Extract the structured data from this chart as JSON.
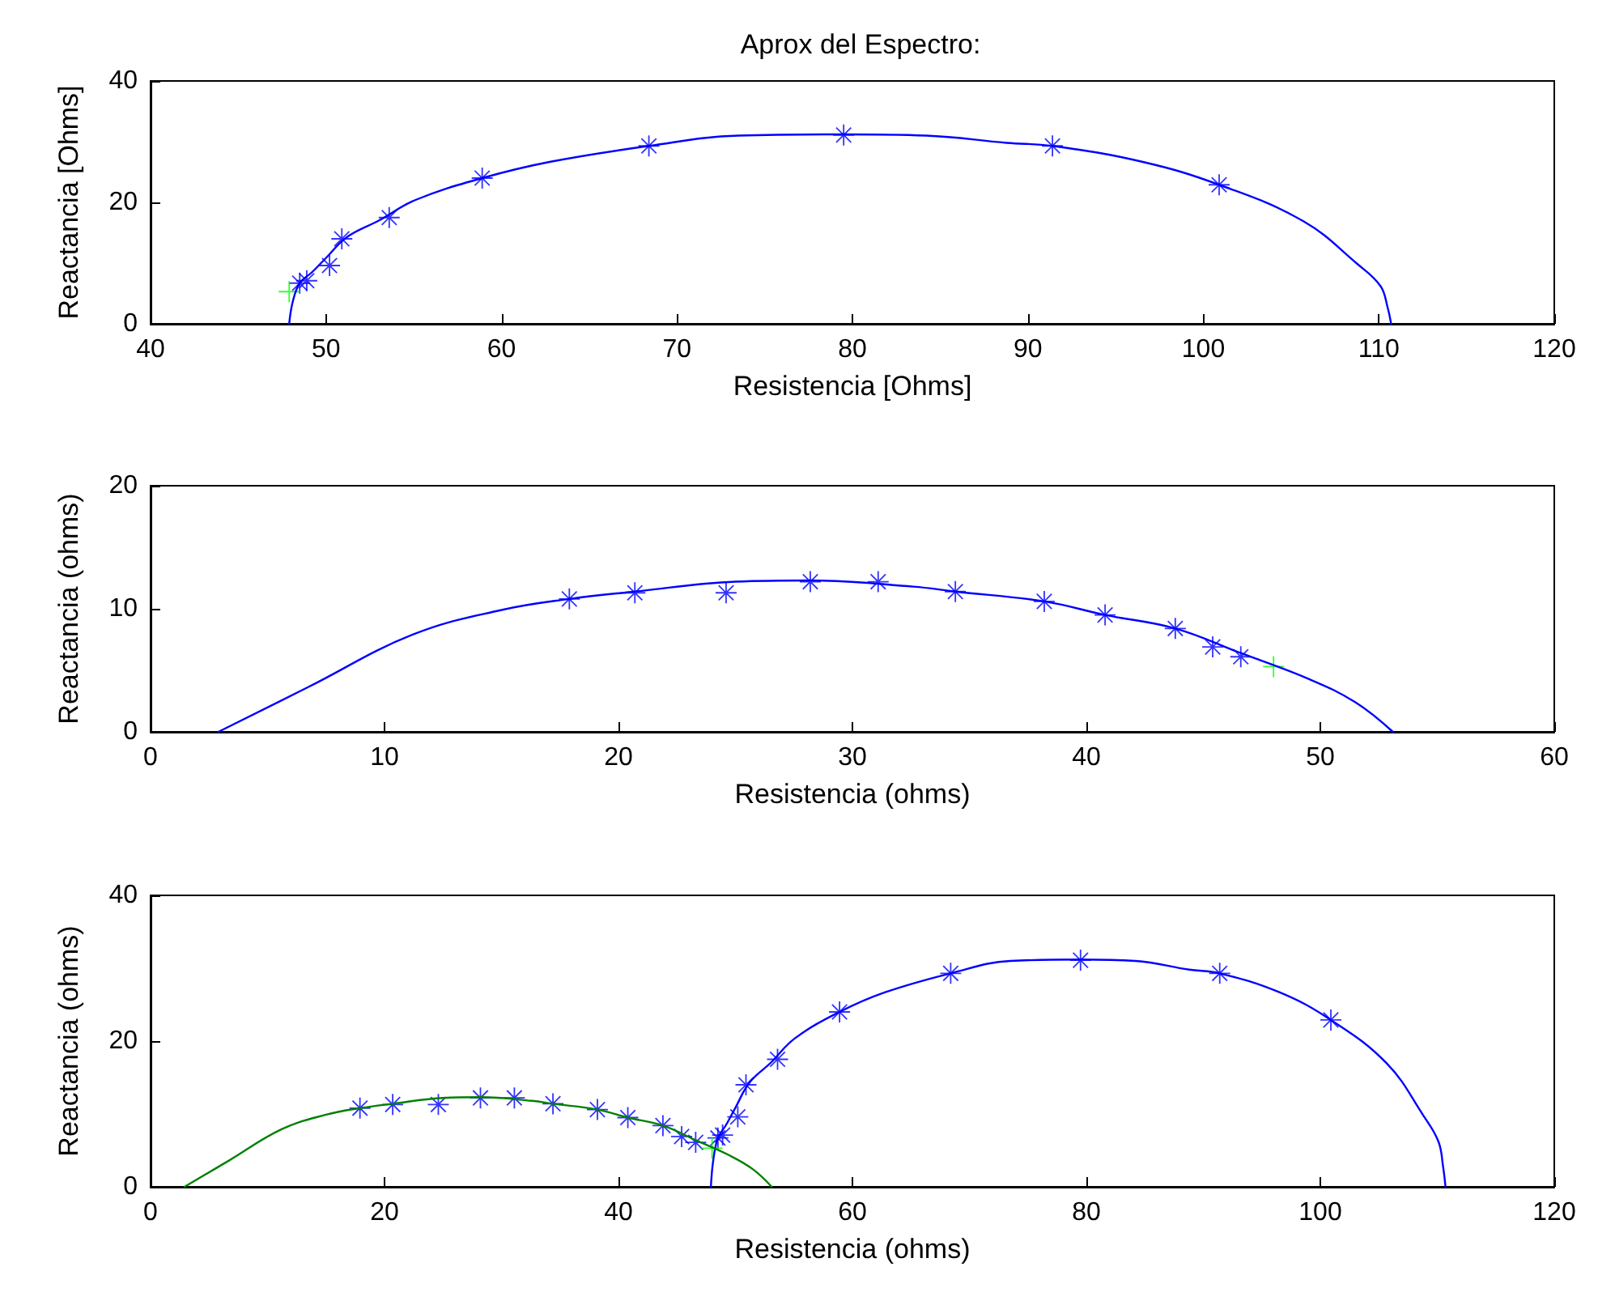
{
  "chart_data": [
    {
      "type": "scatter",
      "title": "Aprox del Espectro:",
      "xlabel": "Resistencia [Ohms]",
      "ylabel": "Reactancia [Ohms]",
      "xlim": [
        40,
        120
      ],
      "xticks": [
        40,
        50,
        60,
        70,
        80,
        90,
        100,
        110,
        120
      ],
      "ylim": [
        0,
        40
      ],
      "yticks": [
        0,
        20,
        40
      ],
      "grid": false,
      "series": [
        {
          "type": "line",
          "marker": "none",
          "color": "#0000ff",
          "x": [
            47.9,
            48.1,
            48.5,
            49.2,
            49.95,
            51.2,
            53.0,
            55.1,
            58.9,
            62.8,
            68.4,
            73.5,
            79.5,
            84.2,
            88.8,
            91.4,
            96.5,
            100.9,
            105.7,
            108.8,
            110.1,
            110.5,
            110.7
          ],
          "values": [
            0,
            3.6,
            6.7,
            8.5,
            10.7,
            14.3,
            17.0,
            20.4,
            24.0,
            26.7,
            29.3,
            31.0,
            31.2,
            31.0,
            29.8,
            29.3,
            26.7,
            22.9,
            16.9,
            9.8,
            6.2,
            2.7,
            0
          ]
        },
        {
          "marker": "star",
          "color": "#0000ff",
          "x": [
            48.5,
            48.9,
            50.2,
            50.9,
            53.6,
            58.9,
            68.4,
            79.5,
            91.4,
            100.9
          ],
          "values": [
            6.7,
            7.1,
            9.6,
            14.0,
            17.5,
            24.0,
            29.3,
            31.1,
            29.3,
            22.9
          ]
        },
        {
          "marker": "cross",
          "color": "#00ff00",
          "x": [
            47.9
          ],
          "values": [
            5.3
          ]
        }
      ]
    },
    {
      "type": "scatter",
      "xlabel": "Resistencia (ohms)",
      "ylabel": "Reactancia (ohms)",
      "xlim": [
        0,
        60
      ],
      "xticks": [
        0,
        10,
        20,
        30,
        40,
        50,
        60
      ],
      "ylim": [
        0,
        20
      ],
      "yticks": [
        0,
        10,
        20
      ],
      "grid": false,
      "series": [
        {
          "type": "line",
          "marker": "none",
          "color": "#0000ff",
          "x": [
            2.9,
            6.7,
            11.2,
            15.0,
            17.9,
            20.7,
            25.0,
            28.2,
            32.6,
            34.4,
            38.2,
            40.8,
            43.8,
            46.6,
            49.5,
            51.5,
            53.1
          ],
          "values": [
            0,
            3.6,
            7.9,
            9.9,
            10.8,
            11.4,
            12.2,
            12.3,
            11.8,
            11.4,
            10.6,
            9.5,
            8.4,
            6.4,
            4.3,
            2.4,
            0
          ]
        },
        {
          "marker": "star",
          "color": "#0000ff",
          "x": [
            17.9,
            20.7,
            24.6,
            28.2,
            31.1,
            34.4,
            38.2,
            40.8,
            43.8,
            45.4,
            46.6
          ],
          "values": [
            10.8,
            11.3,
            11.3,
            12.2,
            12.2,
            11.4,
            10.6,
            9.5,
            8.4,
            6.9,
            6.1
          ]
        },
        {
          "marker": "cross",
          "color": "#00ff00",
          "x": [
            48.0
          ],
          "values": [
            5.3
          ]
        }
      ]
    },
    {
      "type": "scatter",
      "xlabel": "Resistencia (ohms)",
      "ylabel": "Reactancia (ohms)",
      "xlim": [
        0,
        120
      ],
      "xticks": [
        0,
        20,
        40,
        60,
        80,
        100,
        120
      ],
      "ylim": [
        0,
        40
      ],
      "yticks": [
        0,
        20,
        40
      ],
      "grid": false,
      "series": [
        {
          "type": "line",
          "marker": "none",
          "color": "#0000ff",
          "x": [
            47.9,
            48.1,
            48.5,
            49.2,
            49.95,
            51.2,
            53.0,
            55.1,
            58.9,
            62.8,
            68.4,
            73.5,
            79.5,
            84.2,
            88.8,
            91.4,
            96.5,
            100.9,
            105.7,
            108.8,
            110.1,
            110.5,
            110.7
          ],
          "values": [
            0,
            3.6,
            6.7,
            8.5,
            10.7,
            14.3,
            17.0,
            20.4,
            24.0,
            26.7,
            29.3,
            31.0,
            31.2,
            31.0,
            29.8,
            29.3,
            26.7,
            22.9,
            16.9,
            9.8,
            6.2,
            2.7,
            0
          ]
        },
        {
          "type": "line",
          "marker": "none",
          "color": "#008000",
          "x": [
            2.9,
            6.7,
            11.2,
            15.0,
            17.9,
            20.7,
            25.0,
            28.2,
            32.6,
            34.4,
            38.2,
            40.8,
            43.8,
            46.6,
            49.5,
            51.5,
            53.1
          ],
          "values": [
            0,
            3.6,
            7.9,
            9.9,
            10.8,
            11.4,
            12.2,
            12.3,
            11.8,
            11.4,
            10.6,
            9.5,
            8.4,
            6.4,
            4.3,
            2.4,
            0
          ]
        },
        {
          "marker": "star",
          "color": "#0000ff",
          "x": [
            17.9,
            20.7,
            24.6,
            28.2,
            31.1,
            34.4,
            38.2,
            40.8,
            43.8,
            45.4,
            46.6,
            48.5,
            48.9,
            50.2,
            50.9,
            53.6,
            58.9,
            68.4,
            79.5,
            91.4,
            100.9
          ],
          "values": [
            10.8,
            11.3,
            11.3,
            12.2,
            12.2,
            11.4,
            10.6,
            9.5,
            8.4,
            6.9,
            6.1,
            6.7,
            7.1,
            9.6,
            14.0,
            17.5,
            24.0,
            29.3,
            31.1,
            29.3,
            22.9
          ]
        },
        {
          "marker": "cross",
          "color": "#00ff00",
          "x": [
            48.0
          ],
          "values": [
            5.3
          ]
        }
      ]
    }
  ]
}
